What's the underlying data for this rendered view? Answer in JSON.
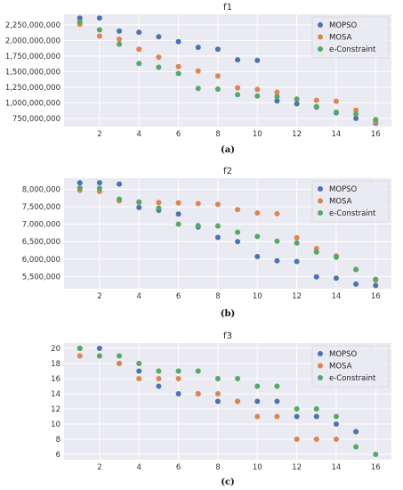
{
  "chart_data": [
    {
      "type": "scatter",
      "title": "f1",
      "caption": "(a)",
      "x_ticks": [
        2,
        4,
        6,
        8,
        10,
        12,
        14,
        16
      ],
      "y_ticks": [
        750000000,
        1000000000,
        1250000000,
        1500000000,
        1750000000,
        2000000000,
        2250000000
      ],
      "y_tick_labels": [
        "750,000,000",
        "1,000,000,000",
        "1,250,000,000",
        "1,500,000,000",
        "1,750,000,000",
        "2,000,000,000",
        "2,250,000,000"
      ],
      "xlim": [
        0.2,
        16.8
      ],
      "ylim": [
        620000000,
        2420000000
      ],
      "grid": true,
      "legend_position": "top-right",
      "series": [
        {
          "name": "MOPSO",
          "color": "#4c72b0",
          "x": [
            1,
            2,
            3,
            4,
            5,
            6,
            7,
            8,
            9,
            10,
            11,
            12,
            13,
            14,
            15,
            16
          ],
          "y": [
            2360000000,
            2360000000,
            2150000000,
            2130000000,
            2060000000,
            1980000000,
            1890000000,
            1860000000,
            1690000000,
            1680000000,
            1030000000,
            985000000,
            930000000,
            840000000,
            750000000,
            675000000
          ]
        },
        {
          "name": "MOSA",
          "color": "#dd8452",
          "x": [
            1,
            2,
            3,
            4,
            5,
            6,
            7,
            8,
            9,
            10,
            11,
            12,
            13,
            14,
            15,
            16
          ],
          "y": [
            2260000000,
            2070000000,
            2020000000,
            1860000000,
            1730000000,
            1580000000,
            1510000000,
            1430000000,
            1240000000,
            1215000000,
            1170000000,
            1060000000,
            1040000000,
            1025000000,
            880000000,
            695000000
          ]
        },
        {
          "name": "e-Constraint",
          "color": "#55a868",
          "x": [
            1,
            2,
            3,
            4,
            5,
            6,
            7,
            8,
            9,
            10,
            11,
            12,
            13,
            14,
            15,
            16
          ],
          "y": [
            2300000000,
            2170000000,
            1940000000,
            1630000000,
            1570000000,
            1470000000,
            1230000000,
            1220000000,
            1130000000,
            1110000000,
            1100000000,
            1060000000,
            940000000,
            850000000,
            820000000,
            730000000
          ]
        }
      ]
    },
    {
      "type": "scatter",
      "title": "f2",
      "caption": "(b)",
      "x_ticks": [
        2,
        4,
        6,
        8,
        10,
        12,
        14,
        16
      ],
      "y_ticks": [
        5500000,
        6000000,
        6500000,
        7000000,
        7500000,
        8000000
      ],
      "y_tick_labels": [
        "5,500,000",
        "6,000,000",
        "6,500,000",
        "7,000,000",
        "7,500,000",
        "8,000,000"
      ],
      "xlim": [
        0.2,
        16.8
      ],
      "ylim": [
        5150000,
        8320000
      ],
      "grid": true,
      "legend_position": "top-right",
      "series": [
        {
          "name": "MOPSO",
          "color": "#4c72b0",
          "x": [
            1,
            2,
            3,
            4,
            5,
            6,
            7,
            8,
            9,
            10,
            11,
            12,
            13,
            14,
            15,
            16
          ],
          "y": [
            8190000,
            8190000,
            8150000,
            7480000,
            7400000,
            7290000,
            6920000,
            6620000,
            6500000,
            6070000,
            5950000,
            5930000,
            5490000,
            5450000,
            5280000,
            5240000
          ]
        },
        {
          "name": "MOSA",
          "color": "#dd8452",
          "x": [
            1,
            2,
            3,
            4,
            5,
            6,
            7,
            8,
            9,
            10,
            11,
            12,
            13,
            14,
            15,
            16
          ],
          "y": [
            7970000,
            7940000,
            7670000,
            7640000,
            7620000,
            7610000,
            7590000,
            7570000,
            7420000,
            7320000,
            7300000,
            6610000,
            6300000,
            6090000,
            5700000,
            5390000
          ]
        },
        {
          "name": "e-Constraint",
          "color": "#55a868",
          "x": [
            1,
            2,
            3,
            4,
            5,
            6,
            7,
            8,
            9,
            10,
            11,
            12,
            13,
            14,
            15,
            16
          ],
          "y": [
            8040000,
            8030000,
            7720000,
            7630000,
            7460000,
            7000000,
            6960000,
            6950000,
            6770000,
            6650000,
            6510000,
            6460000,
            6200000,
            6050000,
            5700000,
            5420000
          ]
        }
      ]
    },
    {
      "type": "scatter",
      "title": "f3",
      "caption": "(c)",
      "x_ticks": [
        2,
        4,
        6,
        8,
        10,
        12,
        14,
        16
      ],
      "y_ticks": [
        6,
        8,
        10,
        12,
        14,
        16,
        18,
        20
      ],
      "y_tick_labels": [
        "6",
        "8",
        "10",
        "12",
        "14",
        "16",
        "18",
        "20"
      ],
      "xlim": [
        0.2,
        16.8
      ],
      "ylim": [
        5.3,
        20.7
      ],
      "grid": true,
      "legend_position": "top-right",
      "series": [
        {
          "name": "MOPSO",
          "color": "#4c72b0",
          "x": [
            1,
            2,
            3,
            4,
            5,
            6,
            7,
            8,
            9,
            10,
            11,
            12,
            13,
            14,
            15
          ],
          "y": [
            20,
            20,
            18,
            17,
            15,
            14,
            14,
            13,
            13,
            13,
            13,
            11,
            11,
            10,
            9
          ]
        },
        {
          "name": "MOSA",
          "color": "#dd8452",
          "x": [
            1,
            2,
            3,
            4,
            5,
            6,
            7,
            8,
            9,
            10,
            11,
            12,
            13,
            14
          ],
          "y": [
            19,
            19,
            18,
            16,
            16,
            16,
            14,
            14,
            13,
            11,
            11,
            8,
            8,
            8
          ]
        },
        {
          "name": "e-Constraint",
          "color": "#55a868",
          "x": [
            1,
            2,
            3,
            4,
            5,
            6,
            7,
            8,
            9,
            10,
            11,
            12,
            13,
            14,
            15,
            16
          ],
          "y": [
            20,
            19,
            19,
            18,
            17,
            17,
            17,
            16,
            16,
            15,
            15,
            12,
            12,
            11,
            7,
            6
          ]
        }
      ]
    }
  ]
}
